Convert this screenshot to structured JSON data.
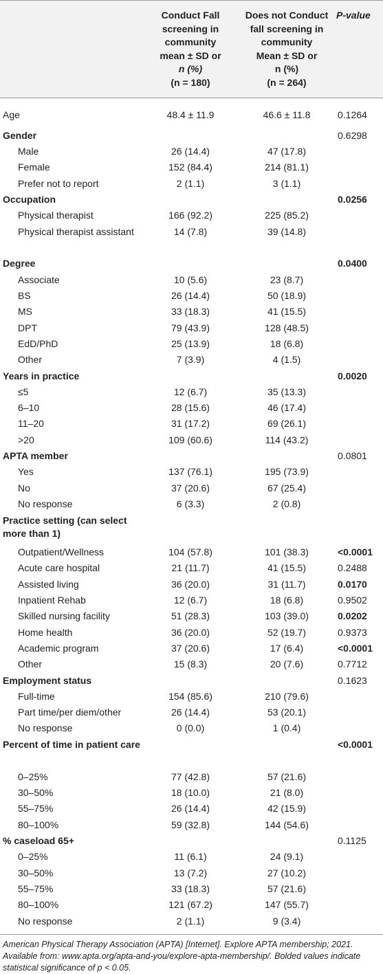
{
  "header": {
    "col1": [
      "Conduct Fall",
      "screening in",
      "community",
      "mean ± SD or",
      "n (%)",
      "(n = 180)"
    ],
    "col2": [
      "Does not Conduct",
      "fall screening in",
      "community",
      "Mean ± SD or",
      "n (%)",
      "(n = 264)"
    ],
    "col3": "P-value"
  },
  "rows": [
    {
      "label": "Age",
      "a": "48.4 ± 11.9",
      "b": "46.6 ± 11.8",
      "p": "0.1264",
      "type": "plain"
    },
    {
      "label": "Gender",
      "a": "",
      "b": "",
      "p": "0.6298",
      "type": "head"
    },
    {
      "label": "Male",
      "a": "26 (14.4)",
      "b": "47 (17.8)",
      "p": "",
      "type": "sub"
    },
    {
      "label": "Female",
      "a": "152 (84.4)",
      "b": "214 (81.1)",
      "p": "",
      "type": "sub"
    },
    {
      "label": "Prefer not to report",
      "a": "2 (1.1)",
      "b": "3 (1.1)",
      "p": "",
      "type": "sub"
    },
    {
      "label": "Occupation",
      "a": "",
      "b": "",
      "p": "0.0256",
      "type": "head",
      "bold": true
    },
    {
      "label": "Physical therapist",
      "a": "166 (92.2)",
      "b": "225 (85.2)",
      "p": "",
      "type": "sub"
    },
    {
      "label": "Physical therapist assistant",
      "a": "14 (7.8)",
      "b": "39 (14.8)",
      "p": "",
      "type": "sub",
      "wrap": true
    },
    {
      "label": "Degree",
      "a": "",
      "b": "",
      "p": "0.0400",
      "type": "head",
      "bold": true
    },
    {
      "label": "Associate",
      "a": "10 (5.6)",
      "b": "23 (8.7)",
      "p": "",
      "type": "sub"
    },
    {
      "label": "BS",
      "a": "26 (14.4)",
      "b": "50 (18.9)",
      "p": "",
      "type": "sub"
    },
    {
      "label": "MS",
      "a": "33 (18.3)",
      "b": "41 (15.5)",
      "p": "",
      "type": "sub"
    },
    {
      "label": "DPT",
      "a": "79 (43.9)",
      "b": "128 (48.5)",
      "p": "",
      "type": "sub"
    },
    {
      "label": "EdD/PhD",
      "a": "25 (13.9)",
      "b": "18 (6.8)",
      "p": "",
      "type": "sub"
    },
    {
      "label": "Other",
      "a": "7 (3.9)",
      "b": "4 (1.5)",
      "p": "",
      "type": "sub"
    },
    {
      "label": "Years in practice",
      "a": "",
      "b": "",
      "p": "0.0020",
      "type": "head",
      "bold": true
    },
    {
      "label": "≤5",
      "a": "12 (6.7)",
      "b": "35 (13.3)",
      "p": "",
      "type": "sub"
    },
    {
      "label": "6–10",
      "a": "28 (15.6)",
      "b": "46 (17.4)",
      "p": "",
      "type": "sub"
    },
    {
      "label": "11–20",
      "a": "31 (17.2)",
      "b": "69 (26.1)",
      "p": "",
      "type": "sub"
    },
    {
      "label": ">20",
      "a": "109 (60.6)",
      "b": "114 (43.2)",
      "p": "",
      "type": "sub"
    },
    {
      "label": "APTA member",
      "a": "",
      "b": "",
      "p": "0.0801",
      "type": "head"
    },
    {
      "label": "Yes",
      "a": "137 (76.1)",
      "b": "195 (73.9)",
      "p": "",
      "type": "sub"
    },
    {
      "label": "No",
      "a": "37 (20.6)",
      "b": "67 (25.4)",
      "p": "",
      "type": "sub"
    },
    {
      "label": "No response",
      "a": "6 (3.3)",
      "b": "2 (0.8)",
      "p": "",
      "type": "sub"
    },
    {
      "label": "Practice setting (can select more than 1)",
      "a": "",
      "b": "",
      "p": "",
      "type": "head",
      "wrap": true
    },
    {
      "label": "Outpatient/Wellness",
      "a": "104 (57.8)",
      "b": "101 (38.3)",
      "p": "<0.0001",
      "type": "sub",
      "bold": true
    },
    {
      "label": "Acute care hospital",
      "a": "21 (11.7)",
      "b": "41 (15.5)",
      "p": "0.2488",
      "type": "sub"
    },
    {
      "label": "Assisted living",
      "a": "36 (20.0)",
      "b": "31 (11.7)",
      "p": "0.0170",
      "type": "sub",
      "bold": true
    },
    {
      "label": "Inpatient Rehab",
      "a": "12 (6.7)",
      "b": "18 (6.8)",
      "p": "0.9502",
      "type": "sub"
    },
    {
      "label": "Skilled nursing facility",
      "a": "51 (28.3)",
      "b": "103 (39.0)",
      "p": "0.0202",
      "type": "sub",
      "bold": true
    },
    {
      "label": "Home health",
      "a": "36 (20.0)",
      "b": "52 (19.7)",
      "p": "0.9373",
      "type": "sub"
    },
    {
      "label": "Academic program",
      "a": "37 (20.6)",
      "b": "17 (6.4)",
      "p": "<0.0001",
      "type": "sub",
      "bold": true
    },
    {
      "label": "Other",
      "a": "15 (8.3)",
      "b": "20 (7.6)",
      "p": "0.7712",
      "type": "sub"
    },
    {
      "label": "Employment status",
      "a": "",
      "b": "",
      "p": "0.1623",
      "type": "head"
    },
    {
      "label": "Full-time",
      "a": "154 (85.6)",
      "b": "210 (79.6)",
      "p": "",
      "type": "sub"
    },
    {
      "label": "Part time/per diem/other",
      "a": "26 (14.4)",
      "b": "53 (20.1)",
      "p": "",
      "type": "sub"
    },
    {
      "label": "No response",
      "a": "0 (0.0)",
      "b": "1 (0.4)",
      "p": "",
      "type": "sub"
    },
    {
      "label": "Percent of time in patient care",
      "a": "",
      "b": "",
      "p": "<0.0001",
      "type": "head",
      "bold": true,
      "wrap": true
    },
    {
      "label": "0–25%",
      "a": "77 (42.8)",
      "b": "57 (21.6)",
      "p": "",
      "type": "sub"
    },
    {
      "label": "30–50%",
      "a": "18 (10.0)",
      "b": "21 (8.0)",
      "p": "",
      "type": "sub"
    },
    {
      "label": "55–75%",
      "a": "26 (14.4)",
      "b": "42 (15.9)",
      "p": "",
      "type": "sub"
    },
    {
      "label": "80–100%",
      "a": "59 (32.8)",
      "b": "144 (54.6)",
      "p": "",
      "type": "sub"
    },
    {
      "label": "% caseload 65+",
      "a": "",
      "b": "",
      "p": "0.1125",
      "type": "head"
    },
    {
      "label": "0–25%",
      "a": "11 (6.1)",
      "b": "24 (9.1)",
      "p": "",
      "type": "sub"
    },
    {
      "label": "30–50%",
      "a": "13 (7.2)",
      "b": "27 (10.2)",
      "p": "",
      "type": "sub"
    },
    {
      "label": "55–75%",
      "a": "33 (18.3)",
      "b": "57 (21.6)",
      "p": "",
      "type": "sub"
    },
    {
      "label": "80–100%",
      "a": "121 (67.2)",
      "b": "147 (55.7)",
      "p": "",
      "type": "sub"
    },
    {
      "label": "No response",
      "a": "2 (1.1)",
      "b": "9 (3.4)",
      "p": "",
      "type": "sub"
    }
  ],
  "footnote": "American Physical Therapy Association (APTA) [Internet]. Explore APTA membership; 2021. Available from: www.apta.org/apta-and-you/explore-apta-membership/. Bolded values indicate statistical significance of p < 0.05."
}
